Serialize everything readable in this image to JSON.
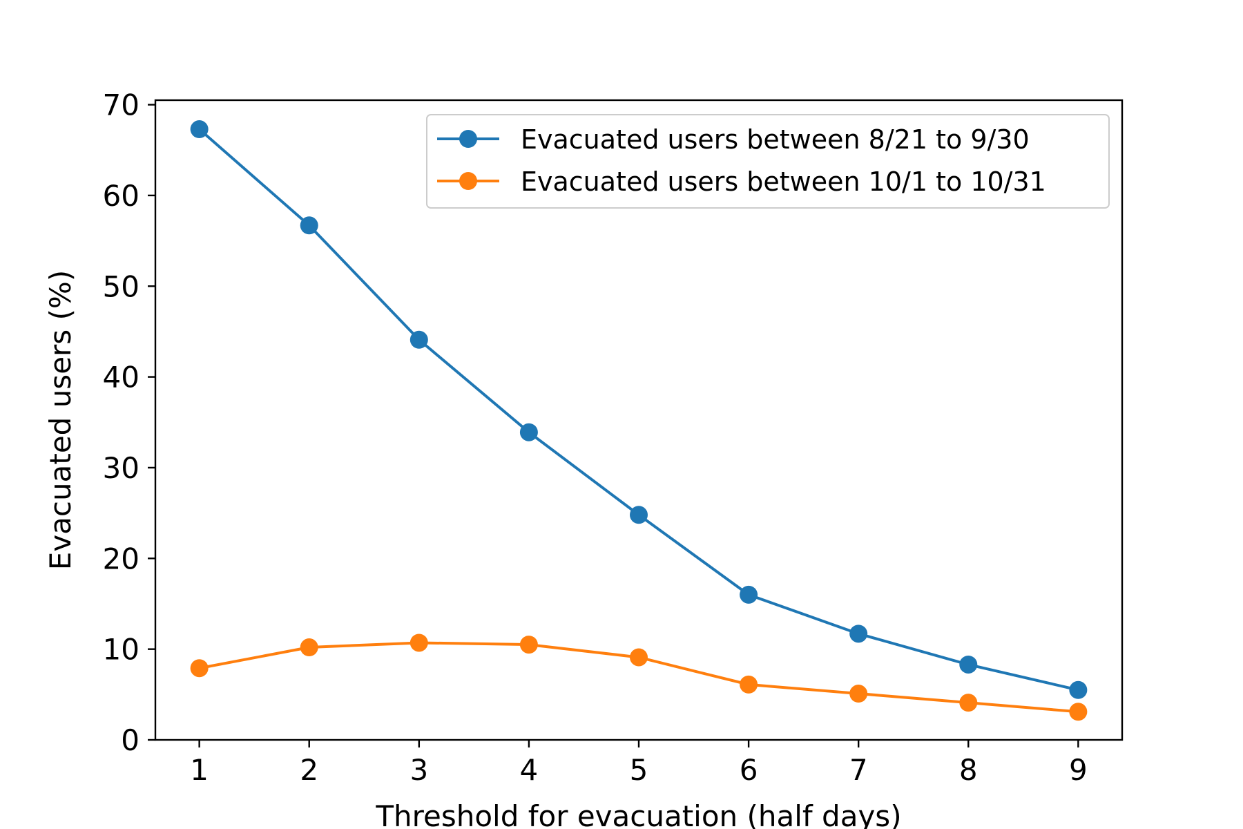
{
  "chart_data": {
    "type": "line",
    "title": "",
    "xlabel": "Threshold for evacuation (half days)",
    "ylabel": "Evacuated users (%)",
    "x": [
      1,
      2,
      3,
      4,
      5,
      6,
      7,
      8,
      9
    ],
    "xticks": [
      1,
      2,
      3,
      4,
      5,
      6,
      7,
      8,
      9
    ],
    "yticks": [
      0,
      10,
      20,
      30,
      40,
      50,
      60,
      70
    ],
    "xlim": [
      0.6,
      9.4
    ],
    "ylim": [
      0,
      70.5
    ],
    "grid": false,
    "legend_position": "top-right",
    "series": [
      {
        "name": "Evacuated users between 8/21 to 9/30",
        "color": "#1f77b4",
        "values": [
          67.3,
          56.7,
          44.1,
          33.9,
          24.8,
          16.0,
          11.7,
          8.3,
          5.5
        ]
      },
      {
        "name": "Evacuated users between 10/1 to 10/31",
        "color": "#ff7f0e",
        "values": [
          7.9,
          10.2,
          10.7,
          10.5,
          9.1,
          6.1,
          5.1,
          4.1,
          3.1
        ]
      }
    ]
  }
}
